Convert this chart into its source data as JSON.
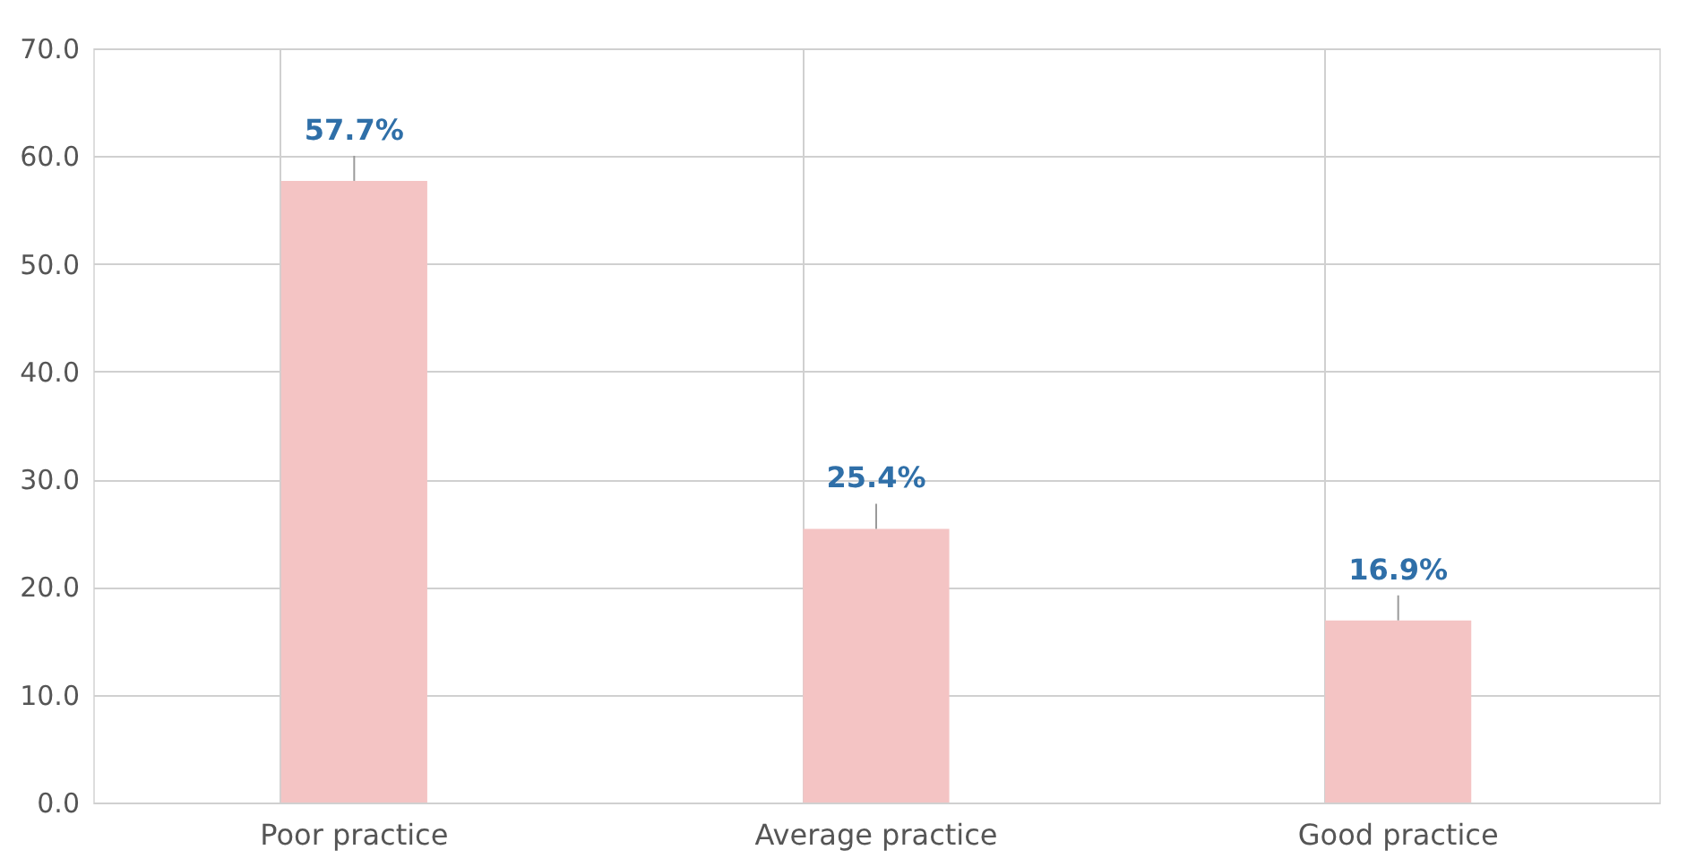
{
  "chart_data": {
    "type": "bar",
    "categories": [
      "Poor practice",
      "Average practice",
      "Good practice"
    ],
    "values": [
      57.7,
      25.4,
      16.9
    ],
    "value_labels": [
      "57.7%",
      "25.4%",
      "16.9%"
    ],
    "color": "#f4c4c4",
    "ylim": [
      0,
      70
    ],
    "yticks": [
      {
        "value": 0,
        "label": "0.0"
      },
      {
        "value": 10,
        "label": "10.0"
      },
      {
        "value": 20,
        "label": "20.0"
      },
      {
        "value": 30,
        "label": "30.0"
      },
      {
        "value": 40,
        "label": "40.0"
      },
      {
        "value": 50,
        "label": "50.0"
      },
      {
        "value": 60,
        "label": "60.0"
      },
      {
        "value": 70,
        "label": "70.0"
      }
    ],
    "grid": true
  }
}
